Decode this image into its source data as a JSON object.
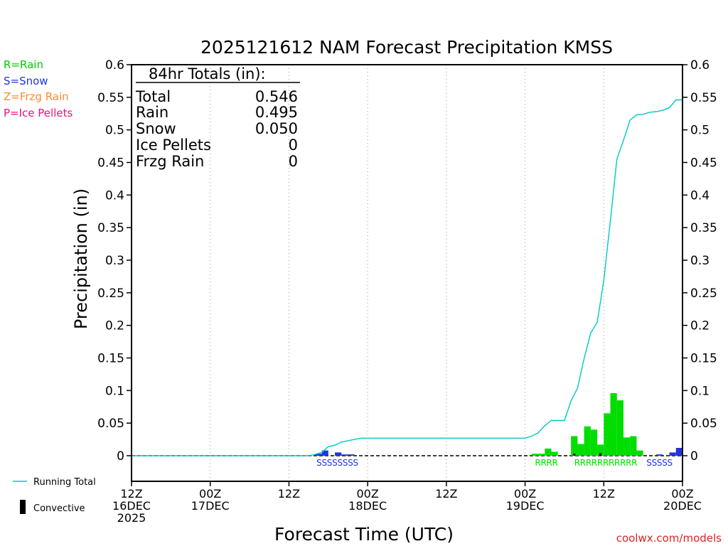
{
  "chart_data": {
    "type": "bar",
    "title": "2025121612 NAM Forecast Precipitation KMSS",
    "xlabel": "Forecast Time (UTC)",
    "ylabel": "Precipitation (in)",
    "ylim": [
      -0.038,
      0.6
    ],
    "yticks": [
      0,
      0.05,
      0.1,
      0.15,
      0.2,
      0.25,
      0.3,
      0.35,
      0.4,
      0.45,
      0.5,
      0.55,
      0.6
    ],
    "ytick_labels": [
      "0",
      "0.05",
      "0.1",
      "0.15",
      "0.2",
      "0.25",
      "0.3",
      "0.35",
      "0.4",
      "0.45",
      "0.5",
      "0.55",
      "0.6"
    ],
    "x_range_hours": [
      0,
      84
    ],
    "x_tick_labels": [
      {
        "hour": 0,
        "lines": [
          "12Z",
          "16DEC",
          "2025"
        ]
      },
      {
        "hour": 12,
        "lines": [
          "00Z",
          "17DEC"
        ]
      },
      {
        "hour": 24,
        "lines": [
          "12Z"
        ]
      },
      {
        "hour": 36,
        "lines": [
          "00Z",
          "18DEC"
        ]
      },
      {
        "hour": 48,
        "lines": [
          "12Z"
        ]
      },
      {
        "hour": 60,
        "lines": [
          "00Z",
          "19DEC"
        ]
      },
      {
        "hour": 72,
        "lines": [
          "12Z"
        ]
      },
      {
        "hour": 84,
        "lines": [
          "00Z",
          "20DEC"
        ]
      }
    ],
    "legend": {
      "rain": "R=Rain",
      "snow": "S=Snow",
      "frzg_rain": "Z=Frzg Rain",
      "ice_pellets": "P=Ice Pellets",
      "running_total": "Running Total",
      "convective": "Convective"
    },
    "totals": {
      "header": "84hr Totals (in):",
      "rows": [
        {
          "label": "Total",
          "value": "0.546"
        },
        {
          "label": "Rain",
          "value": "0.495"
        },
        {
          "label": "Snow",
          "value": "0.050"
        },
        {
          "label": "Ice Pellets",
          "value": "0"
        },
        {
          "label": "Frzg Rain",
          "value": "0"
        }
      ]
    },
    "series": [
      {
        "name": "Snow",
        "color": "#2233dd",
        "bars": [
          {
            "hour": 29,
            "value": 0.003
          },
          {
            "hour": 30,
            "value": 0.008
          },
          {
            "hour": 32,
            "value": 0.005
          },
          {
            "hour": 33,
            "value": 0.002
          },
          {
            "hour": 34,
            "value": 0.002
          },
          {
            "hour": 81,
            "value": 0.002
          },
          {
            "hour": 83,
            "value": 0.005
          },
          {
            "hour": 84,
            "value": 0.012
          }
        ]
      },
      {
        "name": "Rain",
        "color": "#00dd00",
        "bars": [
          {
            "hour": 62,
            "value": 0.003
          },
          {
            "hour": 63,
            "value": 0.003
          },
          {
            "hour": 64,
            "value": 0.011
          },
          {
            "hour": 65,
            "value": 0.006
          },
          {
            "hour": 68,
            "value": 0.03
          },
          {
            "hour": 69,
            "value": 0.018
          },
          {
            "hour": 70,
            "value": 0.045
          },
          {
            "hour": 71,
            "value": 0.04
          },
          {
            "hour": 72,
            "value": 0.017
          },
          {
            "hour": 73,
            "value": 0.065
          },
          {
            "hour": 74,
            "value": 0.096
          },
          {
            "hour": 75,
            "value": 0.085
          },
          {
            "hour": 76,
            "value": 0.028
          },
          {
            "hour": 77,
            "value": 0.03
          },
          {
            "hour": 78,
            "value": 0.008
          }
        ]
      },
      {
        "name": "Convective",
        "color": "#000000",
        "bars": [
          {
            "hour": 68,
            "value": 0.003
          },
          {
            "hour": 72,
            "value": 0.004
          }
        ]
      },
      {
        "name": "Running Total",
        "type": "line",
        "color": "#00c8c8",
        "x": [
          0,
          27,
          28,
          29,
          30,
          31,
          32,
          33,
          34,
          35,
          36,
          60,
          61,
          62,
          63,
          64,
          65,
          66,
          67,
          68,
          69,
          70,
          71,
          72,
          73,
          74,
          75,
          76,
          77,
          78,
          79,
          80,
          81,
          82,
          83,
          84
        ],
        "y": [
          0,
          0,
          0.002,
          0.005,
          0.014,
          0.016,
          0.021,
          0.023,
          0.025,
          0.027,
          0.027,
          0.027,
          0.03,
          0.035,
          0.046,
          0.054,
          0.054,
          0.054,
          0.084,
          0.104,
          0.149,
          0.188,
          0.205,
          0.269,
          0.36,
          0.455,
          0.484,
          0.515,
          0.523,
          0.524,
          0.527,
          0.528,
          0.53,
          0.534,
          0.546,
          0.546
        ]
      }
    ],
    "ptype_labels": [
      {
        "hour_start": 28.2,
        "text": "SSSSSSSS",
        "color": "#2233dd"
      },
      {
        "hour_start": 61.5,
        "text": "RRRR",
        "color": "#00dd00"
      },
      {
        "hour_start": 67.5,
        "text": "RRRRRRRRRRR",
        "color": "#00dd00"
      },
      {
        "hour_start": 78.5,
        "text": "SSSSS",
        "color": "#2233dd"
      }
    ],
    "credit": "coolwx.com/models"
  }
}
